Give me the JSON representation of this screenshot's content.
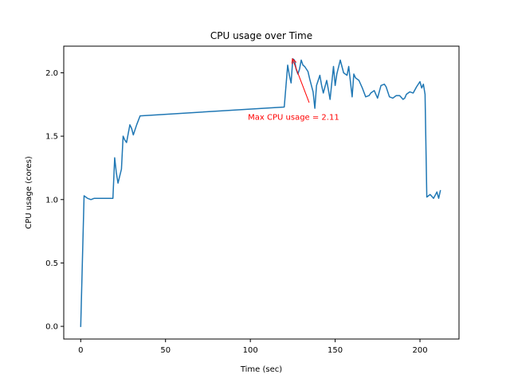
{
  "chart_data": {
    "type": "line",
    "title": "CPU usage over Time",
    "xlabel": "Time (sec)",
    "ylabel": "CPU usage (cores)",
    "xlim": [
      -10,
      223
    ],
    "ylim": [
      -0.1,
      2.21
    ],
    "xticks": [
      0,
      50,
      100,
      150,
      200
    ],
    "xtick_labels": [
      "0",
      "50",
      "100",
      "150",
      "200"
    ],
    "yticks": [
      0.0,
      0.5,
      1.0,
      1.5,
      2.0
    ],
    "ytick_labels": [
      "0.0",
      "0.5",
      "1.0",
      "1.5",
      "2.0"
    ],
    "grid": false,
    "line_color": "#1f77b4",
    "series": [
      {
        "x": [
          0,
          2,
          4,
          6,
          8,
          10,
          12,
          14,
          16,
          18,
          19,
          20,
          21,
          22,
          24,
          25,
          26,
          27,
          28,
          29,
          30,
          31,
          33,
          35,
          120,
          122,
          123,
          124,
          125,
          126,
          127,
          128,
          129,
          130,
          131,
          132,
          134,
          135,
          137,
          138,
          139,
          141,
          142,
          143,
          145,
          147,
          149,
          150,
          151,
          153,
          155,
          157,
          158,
          160,
          161,
          162,
          164,
          166,
          168,
          170,
          171,
          173,
          175,
          177,
          179,
          180,
          182,
          184,
          186,
          188,
          190,
          191,
          192,
          194,
          196,
          198,
          200,
          201,
          202,
          203,
          204,
          206,
          208,
          210,
          211,
          212
        ],
        "y": [
          0.0,
          1.03,
          1.01,
          1.0,
          1.01,
          1.01,
          1.01,
          1.01,
          1.01,
          1.01,
          1.01,
          1.33,
          1.21,
          1.13,
          1.24,
          1.5,
          1.47,
          1.45,
          1.52,
          1.59,
          1.56,
          1.51,
          1.59,
          1.66,
          1.73,
          2.06,
          1.98,
          1.92,
          2.11,
          2.1,
          2.03,
          1.99,
          2.03,
          2.1,
          2.06,
          2.05,
          2.01,
          1.95,
          1.85,
          1.72,
          1.9,
          1.98,
          1.9,
          1.84,
          1.94,
          1.79,
          2.05,
          1.9,
          1.99,
          2.1,
          2.0,
          1.98,
          2.05,
          1.81,
          1.99,
          1.96,
          1.94,
          1.88,
          1.81,
          1.82,
          1.84,
          1.86,
          1.8,
          1.9,
          1.91,
          1.89,
          1.81,
          1.8,
          1.82,
          1.82,
          1.79,
          1.8,
          1.83,
          1.85,
          1.84,
          1.89,
          1.93,
          1.88,
          1.91,
          1.83,
          1.02,
          1.04,
          1.01,
          1.06,
          1.01,
          1.07
        ]
      }
    ],
    "annotation": {
      "text": "Max CPU usage = 2.11",
      "color": "#ff0000",
      "point": [
        124.8,
        2.11
      ],
      "text_anchor_point": [
        100,
        1.63
      ]
    }
  }
}
